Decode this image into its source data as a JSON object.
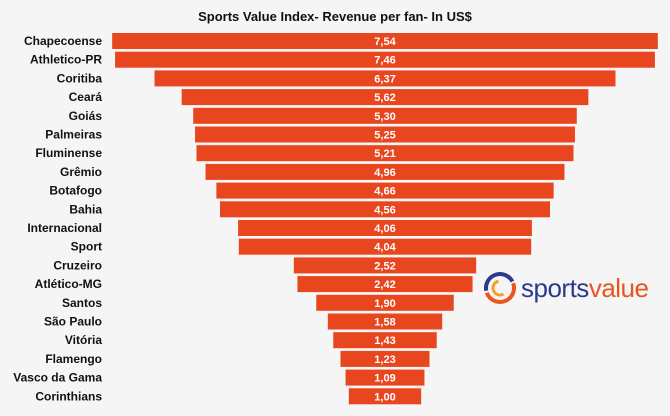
{
  "chart_data": {
    "type": "bar",
    "orientation": "horizontal",
    "title": "Sports Value Index- Revenue per fan- In  US$",
    "categories": [
      "Chapecoense",
      "Athletico-PR",
      "Coritiba",
      "Ceará",
      "Goiás",
      "Palmeiras",
      "Fluminense",
      "Grêmio",
      "Botafogo",
      "Bahia",
      "Internacional",
      "Sport",
      "Cruzeiro",
      "Atlético-MG",
      "Santos",
      "São Paulo",
      "Vitória",
      "Flamengo",
      "Vasco da Gama",
      "Corinthians"
    ],
    "values": [
      7.54,
      7.46,
      6.37,
      5.62,
      5.3,
      5.25,
      5.21,
      4.96,
      4.66,
      4.56,
      4.06,
      4.04,
      2.52,
      2.42,
      1.9,
      1.58,
      1.43,
      1.23,
      1.09,
      1.0
    ],
    "value_labels": [
      "7,54",
      "7,46",
      "6,37",
      "5,62",
      "5,30",
      "5,25",
      "5,21",
      "4,96",
      "4,66",
      "4,56",
      "4,06",
      "4,04",
      "2,52",
      "2,42",
      "1,90",
      "1,58",
      "1,43",
      "1,23",
      "1,09",
      "1,00"
    ],
    "bar_color": "#e8461f",
    "layout_style": "centered funnel",
    "xlabel": "",
    "ylabel": "",
    "xlim": [
      0,
      7.6
    ],
    "grid": false,
    "legend": "none"
  },
  "logo": {
    "text_part1": "sports",
    "text_part2": "value",
    "color_part1": "#2b3a8c",
    "color_part2": "#e8561f"
  }
}
